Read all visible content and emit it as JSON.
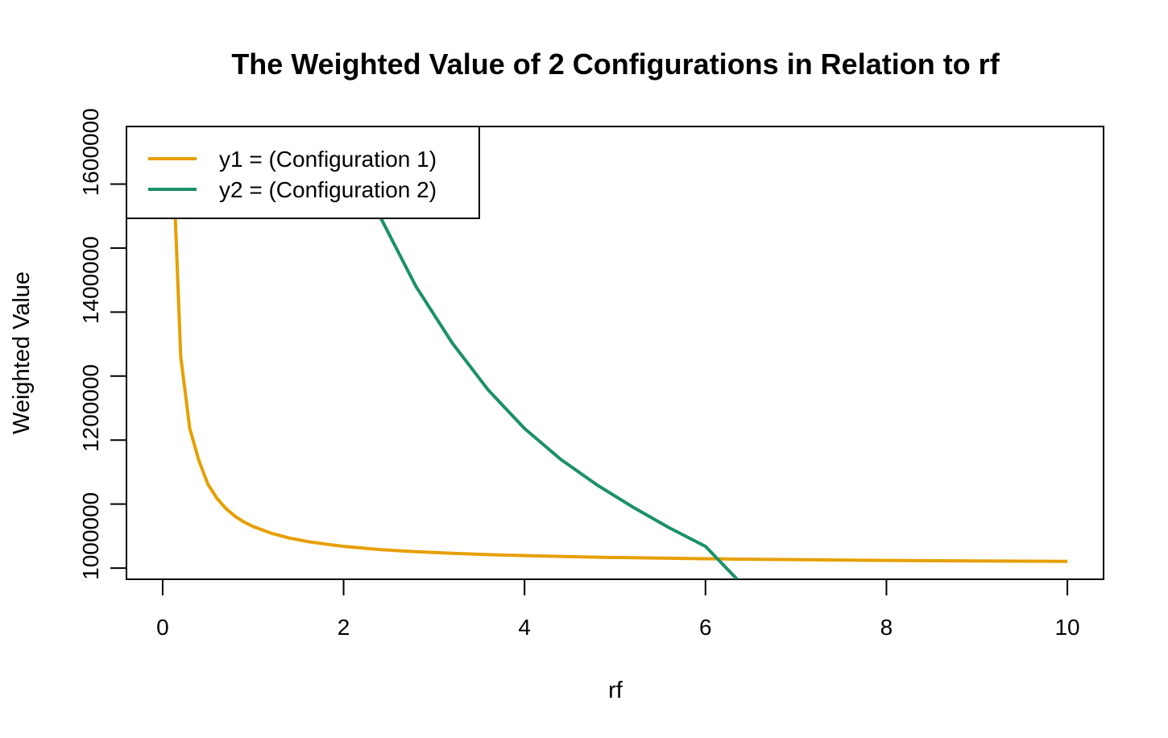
{
  "chart_data": {
    "type": "line",
    "title": "The Weighted Value of 2 Configurations in Relation to rf",
    "xlabel": "rf",
    "ylabel": "Weighted Value",
    "xlim": [
      -0.4,
      10.4
    ],
    "ylim": [
      932500,
      1640000
    ],
    "x_ticks": [
      0,
      2,
      4,
      6,
      8,
      10
    ],
    "y_ticks": [
      1000000,
      1200000,
      1400000,
      1600000
    ],
    "grid": false,
    "legend_position": "top-left",
    "x": [
      0.1,
      0.2,
      0.3,
      0.4,
      0.5,
      0.6,
      0.7,
      0.8,
      0.9,
      1.0,
      1.2,
      1.4,
      1.6,
      1.8,
      2.0,
      2.4,
      2.8,
      3.2,
      3.6,
      4.0,
      4.4,
      4.8,
      5.2,
      5.6,
      6.0,
      6.35,
      6.5,
      7.0,
      8.0,
      9.0,
      10.0
    ],
    "series": [
      {
        "name": "y1 = (Configuration 1)",
        "color": "#E69F00",
        "values": [
          1640000,
          1280000,
          1168000,
          1118000,
          1081000,
          1059000,
          1043000,
          1031000,
          1022000,
          1015000,
          1004500,
          997000,
          991500,
          987500,
          984000,
          979000,
          975500,
          973000,
          971000,
          969500,
          968200,
          967000,
          966100,
          965300,
          964600,
          964000,
          963800,
          963200,
          962000,
          961200,
          960500
        ]
      },
      {
        "name": "y2 = (Configuration 2)",
        "color": "#1B9069",
        "values": [
          null,
          null,
          null,
          null,
          null,
          null,
          null,
          null,
          null,
          null,
          null,
          null,
          null,
          null,
          null,
          1500000,
          1390000,
          1302000,
          1228000,
          1168000,
          1120000,
          1080000,
          1045000,
          1013000,
          984000,
          932500,
          null,
          null,
          null,
          null,
          null
        ]
      }
    ]
  }
}
